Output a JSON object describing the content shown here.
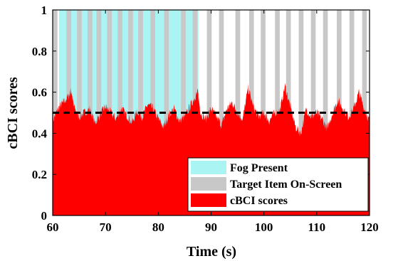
{
  "chart_data": {
    "type": "area",
    "xlabel": "Time (s)",
    "ylabel": "cBCI scores",
    "xlim": [
      60,
      120
    ],
    "ylim": [
      0,
      1
    ],
    "xticks": [
      60,
      70,
      80,
      90,
      100,
      110,
      120
    ],
    "yticks": [
      0,
      0.2,
      0.4,
      0.6,
      0.8,
      1
    ],
    "threshold": 0.5,
    "fog_interval": [
      61.2,
      87.6
    ],
    "target_intervals": [
      [
        60.0,
        60.9
      ],
      [
        62.6,
        63.5
      ],
      [
        64.6,
        65.5
      ],
      [
        66.6,
        67.5
      ],
      [
        68.3,
        69.2
      ],
      [
        70.3,
        71.2
      ],
      [
        72.3,
        73.2
      ],
      [
        74.3,
        75.2
      ],
      [
        76.2,
        77.1
      ],
      [
        78.5,
        79.4
      ],
      [
        81.1,
        82.0
      ],
      [
        84.3,
        85.2
      ],
      [
        86.5,
        87.4
      ],
      [
        89.2,
        90.1
      ],
      [
        91.5,
        92.4
      ],
      [
        94.6,
        95.5
      ],
      [
        97.2,
        98.1
      ],
      [
        99.4,
        100.3
      ],
      [
        102.1,
        103.0
      ],
      [
        104.2,
        105.1
      ],
      [
        106.6,
        107.5
      ],
      [
        108.9,
        109.8
      ],
      [
        111.2,
        112.1
      ],
      [
        113.8,
        114.7
      ],
      [
        116.2,
        117.1
      ],
      [
        118.6,
        119.5
      ]
    ],
    "series": [
      {
        "name": "cBCI scores",
        "x": [
          60,
          61,
          62,
          63,
          63.5,
          64,
          65,
          66,
          67,
          68,
          69,
          70,
          71,
          72,
          73,
          74,
          75,
          76,
          77,
          78,
          79,
          80,
          81,
          82,
          83,
          84,
          85,
          86,
          87,
          87.5,
          88,
          89,
          90,
          91,
          92,
          93,
          94,
          95,
          96,
          97,
          98,
          99,
          100,
          101,
          102,
          103,
          104,
          105,
          106,
          107,
          108,
          109,
          110,
          111,
          112,
          113,
          114,
          115,
          116,
          117,
          118,
          119,
          120
        ],
        "values": [
          0.46,
          0.52,
          0.55,
          0.58,
          0.61,
          0.53,
          0.48,
          0.5,
          0.52,
          0.45,
          0.49,
          0.53,
          0.5,
          0.47,
          0.52,
          0.49,
          0.45,
          0.51,
          0.48,
          0.54,
          0.52,
          0.47,
          0.43,
          0.49,
          0.52,
          0.46,
          0.48,
          0.53,
          0.58,
          0.6,
          0.5,
          0.47,
          0.52,
          0.48,
          0.44,
          0.52,
          0.55,
          0.5,
          0.47,
          0.62,
          0.53,
          0.48,
          0.5,
          0.46,
          0.5,
          0.51,
          0.63,
          0.53,
          0.43,
          0.4,
          0.52,
          0.48,
          0.5,
          0.47,
          0.42,
          0.5,
          0.56,
          0.52,
          0.48,
          0.52,
          0.6,
          0.52,
          0.46
        ]
      }
    ],
    "legend_position": "bottom-right",
    "legend": [
      {
        "label": "Fog Present",
        "color": "#aaf4f4"
      },
      {
        "label": "Target Item On-Screen",
        "color": "#c8c8c8"
      },
      {
        "label": "cBCI scores",
        "color": "#ff0000"
      }
    ],
    "colors": {
      "fog": "#aaf4f4",
      "target": "#c8c8c8",
      "score": "#ff0000",
      "threshold": "#000000"
    }
  }
}
